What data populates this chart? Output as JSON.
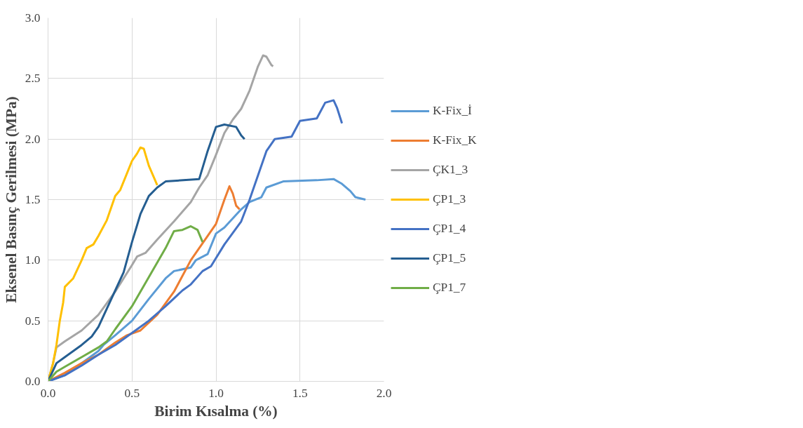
{
  "chart_data": {
    "type": "line",
    "xlabel": "Birim Kısalma (%)",
    "ylabel": "Eksenel Basınç Gerilmesi (MPa)",
    "xlim": [
      0,
      2.0
    ],
    "ylim": [
      0,
      3.0
    ],
    "xticks": [
      {
        "value": 0,
        "label": "0.0"
      },
      {
        "value": 0.5,
        "label": "0.5"
      },
      {
        "value": 1.0,
        "label": "1.0"
      },
      {
        "value": 1.5,
        "label": "1.5"
      },
      {
        "value": 2.0,
        "label": "2.0"
      }
    ],
    "yticks": [
      {
        "value": 0,
        "label": "0.0"
      },
      {
        "value": 0.5,
        "label": "0.5"
      },
      {
        "value": 1.0,
        "label": "1.0"
      },
      {
        "value": 1.5,
        "label": "1.5"
      },
      {
        "value": 2.0,
        "label": "2.0"
      },
      {
        "value": 2.5,
        "label": "2.5"
      },
      {
        "value": 3.0,
        "label": "3.0"
      }
    ],
    "grid": true,
    "legend": "right",
    "marker": "none",
    "line_style": "solid",
    "series": [
      {
        "name": "K-Fix_İ",
        "color": "#5b9bd5",
        "x": [
          0,
          0.1,
          0.2,
          0.3,
          0.33,
          0.4,
          0.5,
          0.6,
          0.7,
          0.75,
          0.85,
          0.88,
          0.95,
          1.0,
          1.05,
          1.15,
          1.2,
          1.27,
          1.3,
          1.4,
          1.6,
          1.7,
          1.75,
          1.8,
          1.83,
          1.89
        ],
        "values": [
          0,
          0.05,
          0.15,
          0.25,
          0.3,
          0.38,
          0.5,
          0.68,
          0.85,
          0.91,
          0.94,
          1.0,
          1.05,
          1.22,
          1.27,
          1.42,
          1.48,
          1.52,
          1.6,
          1.65,
          1.66,
          1.67,
          1.63,
          1.57,
          1.52,
          1.5
        ]
      },
      {
        "name": "K-Fix_K",
        "color": "#ed7d31",
        "x": [
          0,
          0.1,
          0.2,
          0.3,
          0.4,
          0.47,
          0.55,
          0.65,
          0.75,
          0.85,
          0.95,
          1.0,
          1.05,
          1.08,
          1.1,
          1.12,
          1.14
        ],
        "values": [
          0,
          0.07,
          0.15,
          0.22,
          0.32,
          0.38,
          0.42,
          0.55,
          0.74,
          1.0,
          1.2,
          1.3,
          1.5,
          1.61,
          1.55,
          1.45,
          1.42
        ]
      },
      {
        "name": "ÇK1_3",
        "color": "#a5a5a5",
        "x": [
          0,
          0.03,
          0.05,
          0.1,
          0.2,
          0.3,
          0.4,
          0.45,
          0.5,
          0.53,
          0.58,
          0.65,
          0.75,
          0.85,
          0.9,
          0.95,
          1.0,
          1.05,
          1.1,
          1.15,
          1.2,
          1.25,
          1.28,
          1.3,
          1.33,
          1.34
        ],
        "values": [
          0,
          0.15,
          0.28,
          0.33,
          0.42,
          0.55,
          0.74,
          0.85,
          0.96,
          1.03,
          1.06,
          1.17,
          1.32,
          1.48,
          1.6,
          1.7,
          1.87,
          2.05,
          2.16,
          2.25,
          2.4,
          2.6,
          2.69,
          2.68,
          2.61,
          2.6
        ]
      },
      {
        "name": "ÇP1_3",
        "color": "#ffc000",
        "x": [
          0,
          0.03,
          0.05,
          0.07,
          0.09,
          0.1,
          0.15,
          0.2,
          0.23,
          0.27,
          0.3,
          0.35,
          0.4,
          0.43,
          0.5,
          0.53,
          0.55,
          0.57,
          0.6,
          0.65
        ],
        "values": [
          0,
          0.15,
          0.3,
          0.5,
          0.65,
          0.78,
          0.85,
          1.0,
          1.1,
          1.13,
          1.2,
          1.33,
          1.53,
          1.58,
          1.82,
          1.88,
          1.93,
          1.92,
          1.78,
          1.62
        ]
      },
      {
        "name": "ÇP1_4",
        "color": "#4472c4",
        "x": [
          0,
          0.1,
          0.2,
          0.3,
          0.4,
          0.5,
          0.6,
          0.7,
          0.8,
          0.85,
          0.92,
          0.97,
          1.05,
          1.15,
          1.2,
          1.25,
          1.3,
          1.35,
          1.45,
          1.5,
          1.6,
          1.65,
          1.7,
          1.72,
          1.75
        ],
        "values": [
          0,
          0.05,
          0.13,
          0.22,
          0.3,
          0.4,
          0.5,
          0.62,
          0.75,
          0.8,
          0.91,
          0.95,
          1.13,
          1.32,
          1.5,
          1.7,
          1.9,
          2.0,
          2.02,
          2.15,
          2.17,
          2.3,
          2.32,
          2.26,
          2.13
        ]
      },
      {
        "name": "ÇP1_5",
        "color": "#255e91",
        "x": [
          0,
          0.05,
          0.1,
          0.2,
          0.26,
          0.3,
          0.4,
          0.45,
          0.5,
          0.55,
          0.6,
          0.65,
          0.7,
          0.9,
          0.95,
          1.0,
          1.05,
          1.12,
          1.15,
          1.17
        ],
        "values": [
          0,
          0.15,
          0.2,
          0.3,
          0.37,
          0.45,
          0.75,
          0.9,
          1.15,
          1.38,
          1.53,
          1.6,
          1.65,
          1.67,
          1.9,
          2.1,
          2.12,
          2.1,
          2.03,
          2.0
        ]
      },
      {
        "name": "ÇP1_7",
        "color": "#70ad47",
        "x": [
          0,
          0.05,
          0.1,
          0.2,
          0.3,
          0.35,
          0.4,
          0.5,
          0.6,
          0.7,
          0.75,
          0.8,
          0.85,
          0.89,
          0.92
        ],
        "values": [
          0,
          0.08,
          0.12,
          0.2,
          0.28,
          0.33,
          0.43,
          0.62,
          0.86,
          1.1,
          1.24,
          1.25,
          1.28,
          1.25,
          1.15
        ]
      }
    ]
  }
}
